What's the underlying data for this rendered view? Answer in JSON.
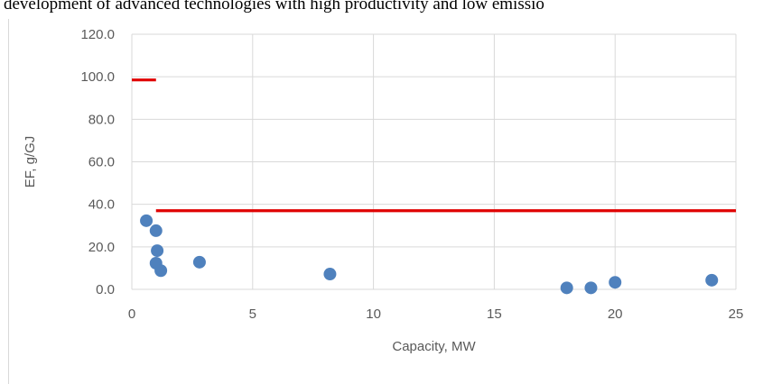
{
  "caption_fragment": "development of advanced technologies with high productivity and low emissio",
  "chart_data": {
    "type": "scatter",
    "xlabel": "Capacity, MW",
    "ylabel": "EF, g/GJ",
    "xlim": [
      0,
      25
    ],
    "ylim": [
      0,
      120
    ],
    "x_ticks": [
      "0",
      "5",
      "10",
      "15",
      "20",
      "25"
    ],
    "y_ticks": [
      "0.0",
      "20.0",
      "40.0",
      "60.0",
      "80.0",
      "100.0",
      "120.0"
    ],
    "grid": true,
    "points": [
      {
        "x": 0.6,
        "y": 32.3
      },
      {
        "x": 1.0,
        "y": 27.6
      },
      {
        "x": 1.05,
        "y": 18.2
      },
      {
        "x": 1.0,
        "y": 12.3
      },
      {
        "x": 1.2,
        "y": 8.8
      },
      {
        "x": 2.8,
        "y": 12.8
      },
      {
        "x": 8.2,
        "y": 7.2
      },
      {
        "x": 18.0,
        "y": 0.7
      },
      {
        "x": 19.0,
        "y": 0.7
      },
      {
        "x": 20.0,
        "y": 3.3
      },
      {
        "x": 24.0,
        "y": 4.3
      }
    ],
    "reference_lines": [
      {
        "x_start": 0,
        "x_end": 1,
        "y": 98.5,
        "color": "#e00000"
      },
      {
        "x_start": 1,
        "x_end": 25,
        "y": 37.0,
        "color": "#e00000"
      }
    ],
    "marker_color": "#4f81bd"
  }
}
